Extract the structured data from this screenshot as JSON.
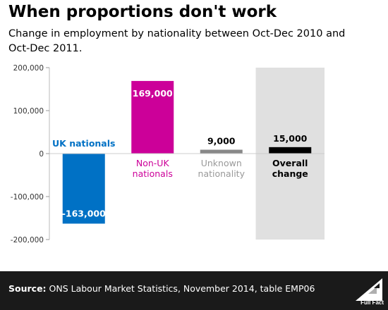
{
  "title": "When proportions don't work",
  "subtitle": "Change in employment by nationality between Oct-Dec 2010 and Oct-Dec 2011.",
  "source_label": "Source:",
  "source_text": " ONS Labour Market Statistics, November 2014, table EMP06",
  "logo_text": "Full Fact",
  "colors": {
    "uk": "#0071c5",
    "non_uk": "#cc0099",
    "unknown": "#888888",
    "overall": "#000000",
    "highlight_bg": "#e0e0e0"
  },
  "chart_data": {
    "type": "bar",
    "title": "When proportions don't work",
    "subtitle": "Change in employment by nationality between Oct-Dec 2010 and Oct-Dec 2011.",
    "xlabel": "",
    "ylabel": "",
    "ylim": [
      -200000,
      200000
    ],
    "yticks": [
      200000,
      100000,
      0,
      -100000,
      -200000
    ],
    "ytick_labels": [
      "200,000",
      "100,000",
      "0",
      "-100,000",
      "-200,000"
    ],
    "grid": false,
    "legend": "none",
    "categories": [
      {
        "key": "uk",
        "label": [
          "UK nationals"
        ],
        "value": -163000,
        "value_label": "-163,000",
        "color": "#0071c5",
        "label_color": "#0071c5"
      },
      {
        "key": "non_uk",
        "label": [
          "Non-UK",
          "nationals"
        ],
        "value": 169000,
        "value_label": "169,000",
        "color": "#cc0099",
        "label_color": "#cc0099"
      },
      {
        "key": "unknown",
        "label": [
          "Unknown",
          "nationality"
        ],
        "value": 9000,
        "value_label": "9,000",
        "color": "#888888",
        "label_color": "#999999"
      },
      {
        "key": "overall",
        "label": [
          "Overall",
          "change"
        ],
        "value": 15000,
        "value_label": "15,000",
        "color": "#000000",
        "label_color": "#000000",
        "highlight": true
      }
    ]
  }
}
